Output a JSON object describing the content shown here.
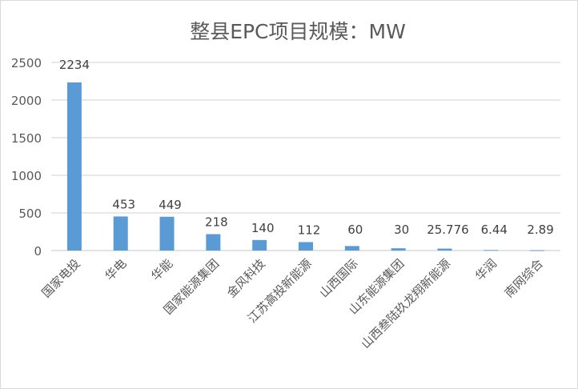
{
  "chart_data": {
    "type": "bar",
    "title": "整县EPC项目规模：MW",
    "categories": [
      "国家电投",
      "华电",
      "华能",
      "国家能源集团",
      "金风科技",
      "江苏高投新能源",
      "山西国际",
      "山东能源集团",
      "山西叁陆玖龙翔新能源",
      "华润",
      "南网综合"
    ],
    "values": [
      2234,
      453,
      449,
      218,
      140,
      112,
      60,
      30,
      25.776,
      6.44,
      2.89
    ],
    "data_labels": [
      "2234",
      "453",
      "449",
      "218",
      "140",
      "112",
      "60",
      "30",
      "25.776",
      "6.44",
      "2.89"
    ],
    "ylim": [
      0,
      2500
    ],
    "yticks": [
      "0",
      "500",
      "1000",
      "1500",
      "2000",
      "2500"
    ],
    "grid": "horizontal",
    "bar_color": "#5b9bd5",
    "grid_color": "#d9d9d9"
  }
}
